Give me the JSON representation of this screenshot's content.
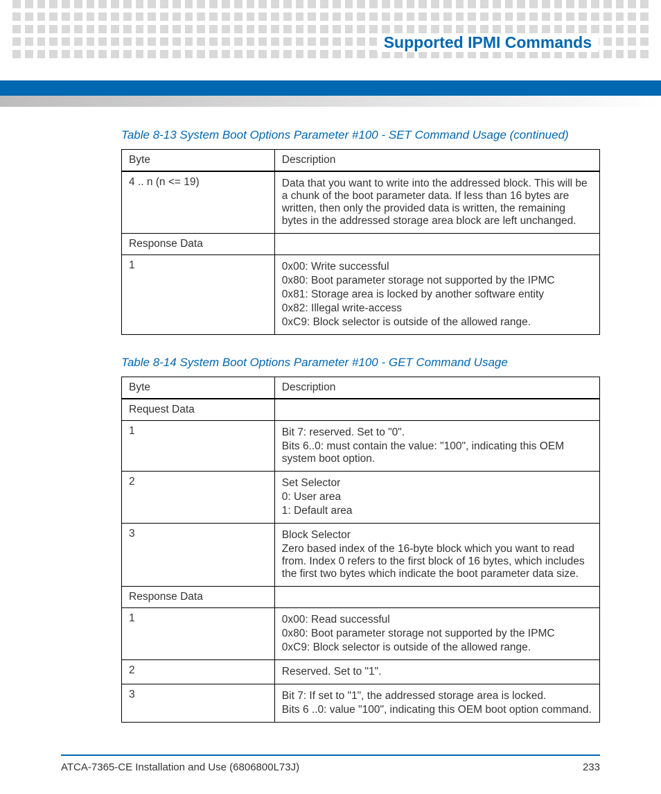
{
  "header": {
    "section_title": "Supported IPMI Commands",
    "dot_color": "#d9d9d9",
    "bar_color": "#0067b1"
  },
  "table1": {
    "caption": "Table 8-13 System Boot Options Parameter #100 - SET Command Usage (continued)",
    "columns": [
      "Byte",
      "Description"
    ],
    "rows": [
      {
        "byte": "4 .. n (n <= 19)",
        "desc": [
          "Data that you want to write into the addressed block. This will be a chunk of the boot parameter data. If less than 16 bytes are written, then only the provided data is written, the remaining bytes in the addressed storage area block are left unchanged."
        ]
      },
      {
        "byte": "Response Data",
        "desc": [
          ""
        ]
      },
      {
        "byte": "1",
        "desc": [
          "0x00: Write successful",
          "0x80: Boot parameter storage not supported by the IPMC",
          "0x81: Storage area is locked by another software entity",
          "0x82: Illegal write-access",
          "0xC9: Block selector is outside of the allowed range."
        ]
      }
    ]
  },
  "table2": {
    "caption": "Table 8-14 System Boot Options Parameter #100 - GET Command Usage",
    "columns": [
      "Byte",
      "Description"
    ],
    "rows": [
      {
        "byte": "Request Data",
        "desc": [
          ""
        ]
      },
      {
        "byte": "1",
        "desc": [
          "Bit 7: reserved. Set to \"0\".",
          "Bits 6..0: must contain the value: \"100\", indicating this OEM system boot option."
        ]
      },
      {
        "byte": "2",
        "desc": [
          "Set Selector",
          "0: User area",
          "1: Default area"
        ]
      },
      {
        "byte": "3",
        "desc": [
          "Block Selector",
          "Zero based index of the 16-byte block which you want to read from. Index 0 refers to the first block of 16 bytes, which includes the first two bytes which indicate the boot parameter data size."
        ]
      },
      {
        "byte": "Response Data",
        "desc": [
          ""
        ]
      },
      {
        "byte": "1",
        "desc": [
          "0x00: Read successful",
          "0x80: Boot parameter storage not supported by the IPMC",
          "0xC9: Block selector is outside of the allowed range."
        ]
      },
      {
        "byte": "2",
        "desc": [
          "Reserved. Set to \"1\"."
        ]
      },
      {
        "byte": "3",
        "desc": [
          "Bit 7: If set to \"1\", the addressed storage area is locked.",
          "Bits 6 ..0: value \"100\", indicating this OEM boot option command."
        ]
      }
    ]
  },
  "footer": {
    "doc_title": "ATCA-7365-CE Installation and Use (6806800L73J)",
    "page_number": "233"
  }
}
